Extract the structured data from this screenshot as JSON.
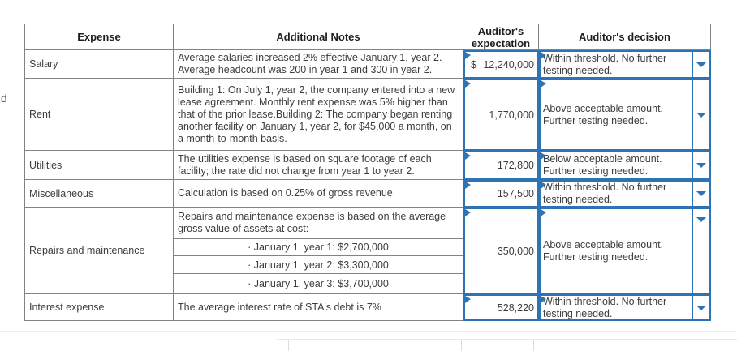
{
  "page": {
    "clipped_left_fragment": "d",
    "accent_blue": "#2e74b5",
    "grid_gray": "#828282"
  },
  "table": {
    "headers": {
      "expense": "Expense",
      "notes": "Additional Notes",
      "expectation": "Auditor's expectation",
      "decision": "Auditor's decision"
    },
    "rows": [
      {
        "expense": "Salary",
        "notes": "Average salaries increased 2% effective January 1, year 2. Average headcount was 200 in year 1 and 300 in year 2.",
        "currency": "$",
        "expectation": "12,240,000",
        "decision": "Within threshold. No further testing needed."
      },
      {
        "expense": "Rent",
        "notes": "Building 1: On July 1, year 2, the company entered into a new lease agreement. Monthly rent expense was 5% higher than that of the prior lease.Building 2: The company began renting another facility on January 1, year 2, for $45,000 a month, on a month-to-month basis.",
        "expectation": "1,770,000",
        "decision": "Above acceptable amount. Further testing needed."
      },
      {
        "expense": "Utilities",
        "notes": "The utilities expense is based on square footage of each facility; the rate did not change from year 1 to year 2.",
        "expectation": "172,800",
        "decision": "Below acceptable amount. Further testing needed."
      },
      {
        "expense": "Miscellaneous",
        "notes": "Calculation is based on 0.25% of gross revenue.",
        "expectation": "157,500",
        "decision": "Within threshold. No further testing needed."
      },
      {
        "expense": "Repairs and maintenance",
        "notes_intro": "Repairs and maintenance expense is based on the average gross value of assets at cost:",
        "bullets": [
          "· January 1, year 1: $2,700,000",
          "· January 1, year 2: $3,300,000",
          "· January 1, year 3: $3,700,000"
        ],
        "expectation": "350,000",
        "decision": "Above acceptable amount. Further testing needed."
      },
      {
        "expense": "Interest expense",
        "notes": "The average interest rate of STA's debt is 7%",
        "expectation": "528,220",
        "decision": "Within threshold. No further testing needed."
      }
    ]
  }
}
